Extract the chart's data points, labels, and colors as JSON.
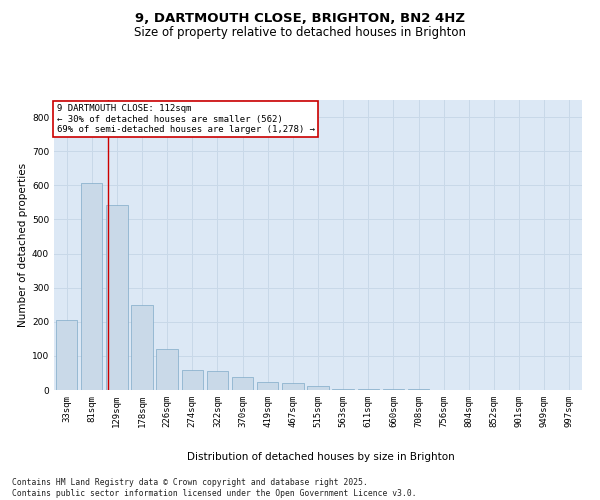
{
  "title": "9, DARTMOUTH CLOSE, BRIGHTON, BN2 4HZ",
  "subtitle": "Size of property relative to detached houses in Brighton",
  "xlabel": "Distribution of detached houses by size in Brighton",
  "ylabel": "Number of detached properties",
  "categories": [
    "33sqm",
    "81sqm",
    "129sqm",
    "178sqm",
    "226sqm",
    "274sqm",
    "322sqm",
    "370sqm",
    "419sqm",
    "467sqm",
    "515sqm",
    "563sqm",
    "611sqm",
    "660sqm",
    "708sqm",
    "756sqm",
    "804sqm",
    "852sqm",
    "901sqm",
    "949sqm",
    "997sqm"
  ],
  "values": [
    205,
    608,
    543,
    248,
    120,
    60,
    57,
    38,
    22,
    20,
    12,
    3,
    3,
    3,
    3,
    1,
    1,
    0,
    0,
    1,
    0
  ],
  "bar_color": "#c9d9e8",
  "bar_edge_color": "#7faac8",
  "grid_color": "#c8d8e8",
  "background_color": "#dce8f5",
  "vline_color": "#cc0000",
  "annotation_text": "9 DARTMOUTH CLOSE: 112sqm\n← 30% of detached houses are smaller (562)\n69% of semi-detached houses are larger (1,278) →",
  "annotation_box_color": "#cc0000",
  "ylim": [
    0,
    850
  ],
  "yticks": [
    0,
    100,
    200,
    300,
    400,
    500,
    600,
    700,
    800
  ],
  "footer": "Contains HM Land Registry data © Crown copyright and database right 2025.\nContains public sector information licensed under the Open Government Licence v3.0.",
  "title_fontsize": 9.5,
  "subtitle_fontsize": 8.5,
  "label_fontsize": 7.5,
  "tick_fontsize": 6.5,
  "footer_fontsize": 5.8,
  "annotation_fontsize": 6.5
}
